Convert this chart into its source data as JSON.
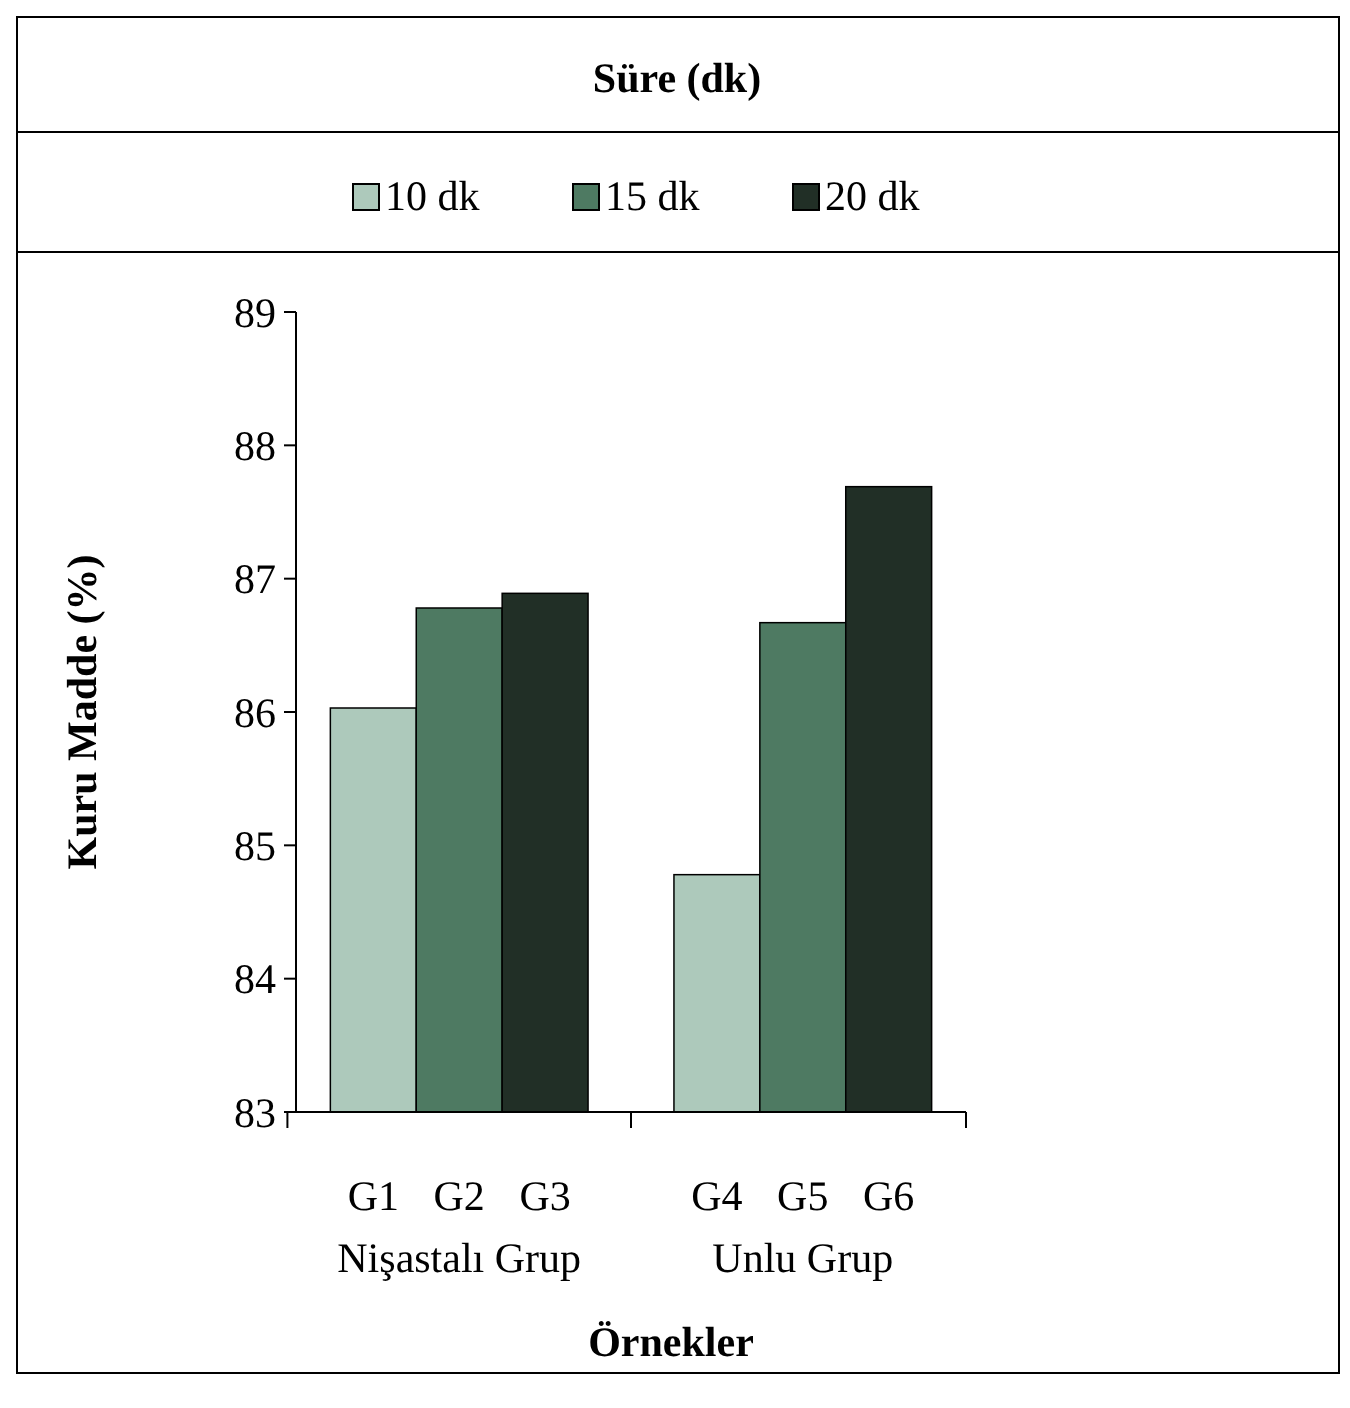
{
  "chart_data": {
    "type": "bar",
    "legend_title": "Süre (dk)",
    "xlabel": "Örnekler",
    "ylabel": "Kuru Madde (%)",
    "categories": [
      "Nişastalı Grup",
      "Unlu Grup"
    ],
    "series": [
      {
        "name": "10 dk",
        "color": "#adc9bb",
        "values": [
          86.03,
          84.78
        ]
      },
      {
        "name": "15 dk",
        "color": "#4e7a62",
        "values": [
          86.78,
          86.67
        ]
      },
      {
        "name": "20 dk",
        "color": "#212f26",
        "values": [
          86.89,
          87.69
        ]
      }
    ],
    "annotations": [
      "G1",
      "G2",
      "G3",
      "G4",
      "G5",
      "G6"
    ],
    "ylim": [
      83,
      89
    ],
    "yticks": [
      83,
      84,
      85,
      86,
      87,
      88,
      89
    ],
    "grid": false,
    "legend": "top"
  }
}
